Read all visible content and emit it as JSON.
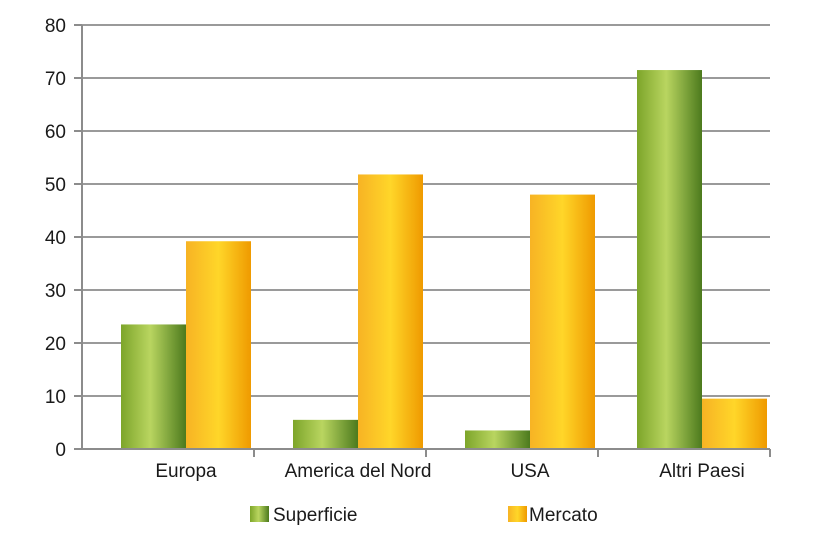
{
  "chart_data": {
    "type": "bar",
    "categories": [
      "Europa",
      "America del Nord",
      "USA",
      "Altri Paesi"
    ],
    "series": [
      {
        "name": "Superficie",
        "values": [
          23.5,
          5.5,
          3.5,
          71.5
        ]
      },
      {
        "name": "Mercato",
        "values": [
          39.2,
          51.8,
          48.0,
          9.5
        ]
      }
    ],
    "ylim": [
      0,
      80
    ],
    "yticks": [
      0,
      10,
      20,
      30,
      40,
      50,
      60,
      70,
      80
    ],
    "grid": true,
    "legend_position": "bottom"
  },
  "colors": {
    "superficie_light": "#b5d25a",
    "superficie_mid": "#86ac2e",
    "superficie_dark": "#4f7a1f",
    "mercato_light": "#ffd84a",
    "mercato_mid": "#fbc21a",
    "mercato_dark": "#f0a000",
    "grid": "#9a9a9a",
    "axis": "#8c8c8c"
  }
}
